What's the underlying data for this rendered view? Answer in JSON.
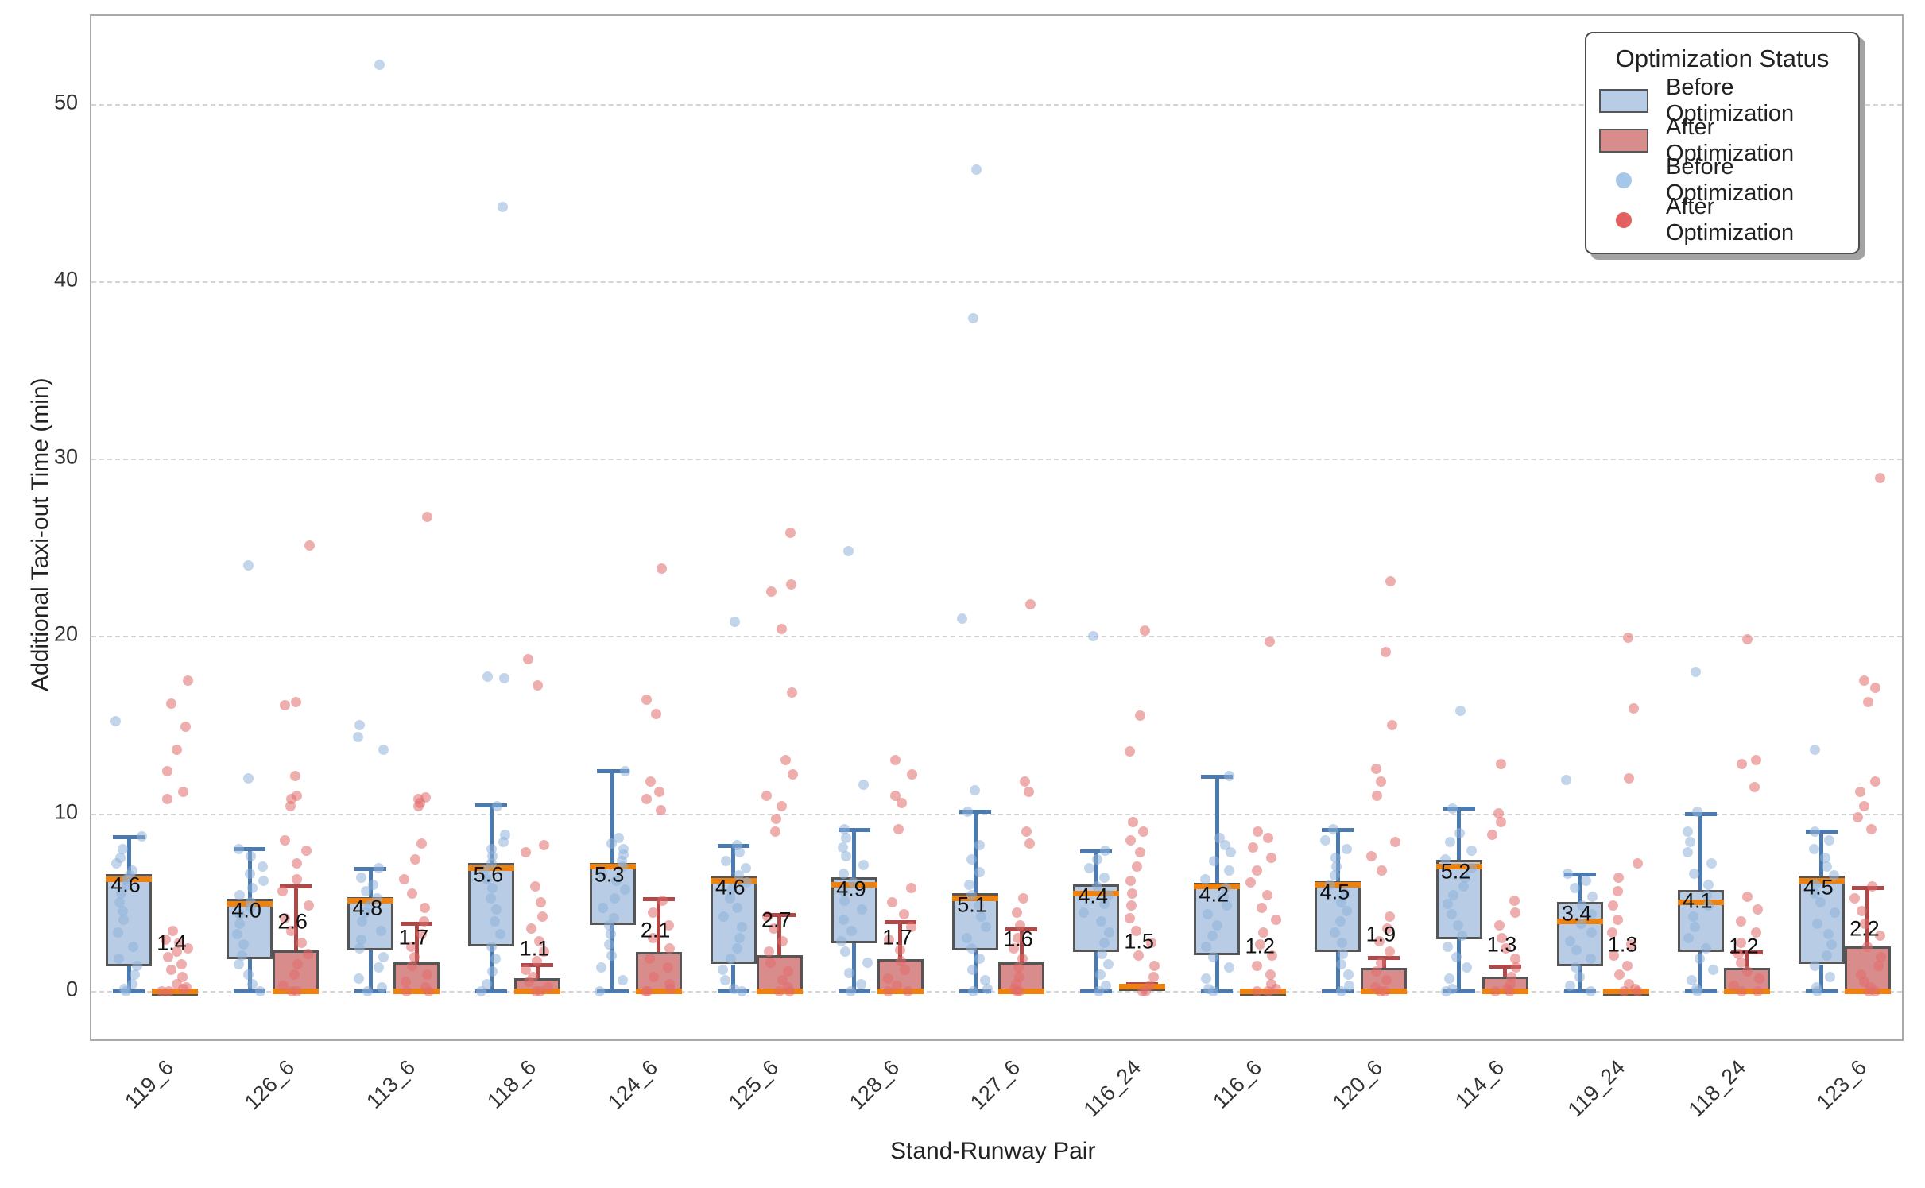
{
  "chart_data": {
    "type": "box",
    "xlabel": "Stand-Runway Pair",
    "ylabel": "Additional Taxi-out Time (min)",
    "yticks": [
      0,
      10,
      20,
      30,
      40,
      50
    ],
    "ylim": [
      -2.9,
      55
    ],
    "grid": "horizontal-dashed",
    "legend": {
      "title": "Optimization Status",
      "position": "upper right",
      "entries": [
        {
          "marker": "patch",
          "label": "Before Optimization"
        },
        {
          "marker": "patch",
          "label": "After Optimization"
        },
        {
          "marker": "dot",
          "label": "Before Optimization"
        },
        {
          "marker": "dot",
          "label": "After Optimization"
        }
      ]
    },
    "groups": [
      {
        "category": "119_6",
        "before": {
          "whislo": 0,
          "q1": 1.4,
          "med": 6.3,
          "q3": 6.6,
          "whishi": 8.7,
          "label": "4.6",
          "points": [
            15.2,
            8.7,
            8.0,
            7.5,
            7.2,
            6.8,
            6.5,
            6.3,
            6.0,
            5.5,
            5.0,
            4.5,
            4.0,
            3.3,
            2.5,
            1.8,
            1.4,
            0.9,
            0.4,
            0.1,
            0
          ]
        },
        "after": {
          "whislo": 0,
          "q1": 0,
          "med": 0,
          "q3": 0,
          "whishi": 0,
          "label": "1.4",
          "points": [
            17.5,
            16.2,
            14.9,
            13.6,
            12.4,
            11.2,
            10.8,
            3.4,
            2.9,
            2.7,
            2.4,
            2.2,
            1.9,
            1.5,
            1.2,
            0.8,
            0.4,
            0.2,
            0.1,
            0,
            0
          ]
        }
      },
      {
        "category": "126_6",
        "before": {
          "whislo": 0,
          "q1": 1.8,
          "med": 4.9,
          "q3": 5.2,
          "whishi": 8.0,
          "label": "4.0",
          "points": [
            24.0,
            12.0,
            8.0,
            7.6,
            7.0,
            6.6,
            6.2,
            5.8,
            5.4,
            5.0,
            4.7,
            4.3,
            3.8,
            3.2,
            2.6,
            2.0,
            1.5,
            0.9,
            0.4,
            0
          ]
        },
        "after": {
          "whislo": 0,
          "q1": 0,
          "med": 0,
          "q3": 2.3,
          "whishi": 5.9,
          "label": "2.6",
          "points": [
            25.1,
            16.3,
            16.1,
            12.1,
            11.0,
            10.8,
            10.4,
            8.5,
            7.9,
            7.2,
            6.3,
            5.6,
            4.8,
            4.1,
            3.4,
            2.7,
            2.1,
            1.5,
            0.9,
            0.3,
            0,
            0
          ]
        }
      },
      {
        "category": "113_6",
        "before": {
          "whislo": 0,
          "q1": 2.3,
          "med": 5.1,
          "q3": 5.3,
          "whishi": 6.9,
          "label": "4.8",
          "points": [
            52.2,
            15.0,
            14.3,
            13.6,
            6.9,
            6.4,
            6.0,
            5.6,
            5.2,
            4.8,
            4.4,
            3.9,
            3.4,
            2.9,
            2.4,
            1.9,
            1.3,
            0.7,
            0.2,
            0
          ]
        },
        "after": {
          "whislo": 0,
          "q1": 0,
          "med": 0,
          "q3": 1.6,
          "whishi": 3.8,
          "label": "1.7",
          "points": [
            26.7,
            10.9,
            10.8,
            10.6,
            10.4,
            8.3,
            7.4,
            6.3,
            5.5,
            4.7,
            3.9,
            3.2,
            2.5,
            1.9,
            1.4,
            0.9,
            0.5,
            0.2,
            0,
            0
          ]
        }
      },
      {
        "category": "118_6",
        "before": {
          "whislo": 0,
          "q1": 2.5,
          "med": 6.9,
          "q3": 7.2,
          "whishi": 10.5,
          "label": "5.6",
          "points": [
            44.2,
            17.7,
            17.6,
            10.4,
            8.8,
            8.4,
            8.0,
            7.6,
            7.2,
            6.8,
            6.3,
            5.8,
            5.2,
            4.6,
            3.9,
            3.2,
            2.5,
            1.8,
            1.1,
            0.4,
            0
          ]
        },
        "after": {
          "whislo": 0,
          "q1": 0,
          "med": 0,
          "q3": 0.7,
          "whishi": 1.5,
          "label": "1.1",
          "points": [
            18.7,
            17.2,
            8.2,
            7.8,
            5.9,
            5.0,
            4.2,
            3.5,
            2.8,
            2.2,
            1.7,
            1.2,
            0.8,
            0.5,
            0.2,
            0,
            0
          ]
        }
      },
      {
        "category": "124_6",
        "before": {
          "whislo": 0,
          "q1": 3.7,
          "med": 7.0,
          "q3": 7.2,
          "whishi": 12.4,
          "label": "5.3",
          "points": [
            12.4,
            8.6,
            8.3,
            8.0,
            7.7,
            7.3,
            7.0,
            6.6,
            6.2,
            5.7,
            5.2,
            4.7,
            4.1,
            3.7,
            3.2,
            2.6,
            2.0,
            1.3,
            0.6,
            0
          ]
        },
        "after": {
          "whislo": 0,
          "q1": 0,
          "med": 0,
          "q3": 2.2,
          "whishi": 5.2,
          "label": "2.1",
          "points": [
            23.8,
            16.4,
            15.6,
            11.8,
            11.2,
            10.8,
            10.2,
            5.1,
            4.4,
            3.7,
            3.0,
            2.4,
            1.8,
            1.3,
            0.8,
            0.4,
            0.1,
            0,
            0
          ]
        }
      },
      {
        "category": "125_6",
        "before": {
          "whislo": 0,
          "q1": 1.5,
          "med": 6.2,
          "q3": 6.5,
          "whishi": 8.2,
          "label": "4.6",
          "points": [
            20.8,
            8.2,
            7.8,
            7.3,
            6.9,
            6.5,
            6.1,
            5.7,
            5.2,
            4.7,
            4.2,
            3.6,
            3.0,
            2.4,
            1.8,
            1.2,
            0.6,
            0.1,
            0
          ]
        },
        "after": {
          "whislo": 0,
          "q1": 0,
          "med": 0,
          "q3": 2.0,
          "whishi": 4.3,
          "label": "2.7",
          "points": [
            25.8,
            22.9,
            22.5,
            20.4,
            16.8,
            13.0,
            12.2,
            11.0,
            10.4,
            9.7,
            9.0,
            4.2,
            3.5,
            2.8,
            2.2,
            1.6,
            1.1,
            0.6,
            0.2,
            0,
            0
          ]
        }
      },
      {
        "category": "128_6",
        "before": {
          "whislo": 0,
          "q1": 2.7,
          "med": 6.0,
          "q3": 6.4,
          "whishi": 9.1,
          "label": "4.9",
          "points": [
            24.8,
            11.6,
            9.1,
            8.6,
            8.1,
            7.6,
            7.1,
            6.6,
            6.1,
            5.6,
            5.1,
            4.6,
            4.0,
            3.4,
            2.8,
            2.2,
            1.6,
            1.0,
            0.4,
            0
          ]
        },
        "after": {
          "whislo": 0,
          "q1": 0,
          "med": 0,
          "q3": 1.8,
          "whishi": 3.9,
          "label": "1.7",
          "points": [
            13.0,
            12.2,
            11.0,
            10.6,
            9.1,
            5.8,
            5.0,
            4.3,
            3.6,
            2.9,
            2.3,
            1.7,
            1.2,
            0.7,
            0.3,
            0,
            0
          ]
        }
      },
      {
        "category": "127_6",
        "before": {
          "whislo": 0,
          "q1": 2.3,
          "med": 5.2,
          "q3": 5.5,
          "whishi": 10.1,
          "label": "5.1",
          "points": [
            46.3,
            37.9,
            21.0,
            11.3,
            10.1,
            8.2,
            7.4,
            6.7,
            6.0,
            5.4,
            4.8,
            4.2,
            3.6,
            3.0,
            2.4,
            1.8,
            1.2,
            0.6,
            0.1,
            0
          ]
        },
        "after": {
          "whislo": 0,
          "q1": 0,
          "med": 0,
          "q3": 1.6,
          "whishi": 3.5,
          "label": "1.6",
          "points": [
            21.8,
            11.8,
            11.2,
            9.0,
            8.3,
            5.2,
            4.4,
            3.7,
            3.0,
            2.4,
            1.8,
            1.3,
            0.8,
            0.4,
            0.1,
            0,
            0
          ]
        }
      },
      {
        "category": "116_24",
        "before": {
          "whislo": 0,
          "q1": 2.2,
          "med": 5.5,
          "q3": 6.0,
          "whishi": 7.9,
          "label": "4.4",
          "points": [
            20.0,
            7.9,
            7.4,
            6.9,
            6.4,
            5.9,
            5.4,
            4.9,
            4.4,
            3.9,
            3.3,
            2.7,
            2.1,
            1.5,
            0.9,
            0.3,
            0
          ]
        },
        "after": {
          "whislo": 0,
          "q1": 0,
          "med": 0.25,
          "q3": 0.3,
          "whishi": 0.4,
          "label": "1.5",
          "points": [
            20.3,
            15.5,
            13.5,
            9.5,
            9.0,
            8.5,
            7.8,
            7.0,
            6.2,
            5.5,
            4.8,
            4.1,
            3.4,
            2.7,
            2.0,
            1.4,
            0.8,
            0.3,
            0,
            0
          ]
        }
      },
      {
        "category": "116_6",
        "before": {
          "whislo": 0,
          "q1": 2.0,
          "med": 5.9,
          "q3": 6.1,
          "whishi": 12.1,
          "label": "4.2",
          "points": [
            12.1,
            8.6,
            8.2,
            7.8,
            7.3,
            6.8,
            6.3,
            5.8,
            5.3,
            4.8,
            4.3,
            3.7,
            3.1,
            2.5,
            1.9,
            1.3,
            0.7,
            0.1,
            0
          ]
        },
        "after": {
          "whislo": 0,
          "q1": 0,
          "med": 0,
          "q3": 0,
          "whishi": 0,
          "label": "1.2",
          "points": [
            19.7,
            9.0,
            8.6,
            8.1,
            7.5,
            6.8,
            6.1,
            5.4,
            4.7,
            4.0,
            3.3,
            2.6,
            2.0,
            1.4,
            0.9,
            0.4,
            0.1,
            0,
            0
          ]
        }
      },
      {
        "category": "120_6",
        "before": {
          "whislo": 0,
          "q1": 2.2,
          "med": 6.0,
          "q3": 6.2,
          "whishi": 9.1,
          "label": "4.5",
          "points": [
            9.1,
            8.5,
            8.0,
            7.5,
            7.0,
            6.5,
            6.0,
            5.5,
            5.0,
            4.5,
            3.9,
            3.3,
            2.7,
            2.1,
            1.5,
            0.9,
            0.3,
            0
          ]
        },
        "after": {
          "whislo": 0,
          "q1": 0,
          "med": 0,
          "q3": 1.3,
          "whishi": 1.9,
          "label": "1.9",
          "points": [
            23.1,
            19.1,
            15.0,
            12.5,
            11.8,
            11.0,
            8.4,
            7.6,
            6.8,
            4.2,
            3.5,
            2.8,
            2.2,
            1.6,
            1.1,
            0.6,
            0.2,
            0,
            0
          ]
        }
      },
      {
        "category": "114_6",
        "before": {
          "whislo": 0,
          "q1": 2.9,
          "med": 7.0,
          "q3": 7.4,
          "whishi": 10.3,
          "label": "5.2",
          "points": [
            15.8,
            10.3,
            8.9,
            8.4,
            7.9,
            7.4,
            6.9,
            6.4,
            5.9,
            5.4,
            4.9,
            4.3,
            3.7,
            3.1,
            2.5,
            1.9,
            1.3,
            0.7,
            0.1,
            0
          ]
        },
        "after": {
          "whislo": 0,
          "q1": 0,
          "med": 0,
          "q3": 0.8,
          "whishi": 1.4,
          "label": "1.3",
          "points": [
            12.8,
            10.0,
            9.5,
            8.8,
            5.1,
            4.4,
            3.7,
            3.0,
            2.4,
            1.8,
            1.3,
            0.8,
            0.4,
            0.1,
            0,
            0
          ]
        }
      },
      {
        "category": "119_24",
        "before": {
          "whislo": 0,
          "q1": 1.4,
          "med": 3.9,
          "q3": 5.0,
          "whishi": 6.6,
          "label": "3.4",
          "points": [
            11.9,
            6.6,
            6.2,
            5.8,
            5.3,
            4.8,
            4.3,
            3.8,
            3.3,
            2.8,
            2.3,
            1.8,
            1.3,
            0.8,
            0.3,
            0
          ]
        },
        "after": {
          "whislo": 0,
          "q1": 0,
          "med": 0,
          "q3": 0,
          "whishi": 0,
          "label": "1.3",
          "points": [
            19.9,
            15.9,
            12.0,
            7.2,
            6.4,
            5.6,
            4.8,
            4.0,
            3.3,
            2.6,
            2.0,
            1.4,
            0.9,
            0.4,
            0.1,
            0,
            0
          ]
        }
      },
      {
        "category": "118_24",
        "before": {
          "whislo": 0,
          "q1": 2.2,
          "med": 5.0,
          "q3": 5.7,
          "whishi": 10.0,
          "label": "4.1",
          "points": [
            18.0,
            10.1,
            9.0,
            8.4,
            7.8,
            7.2,
            6.6,
            6.0,
            5.4,
            4.8,
            4.2,
            3.6,
            3.0,
            2.4,
            1.8,
            1.2,
            0.6,
            0.1,
            0
          ]
        },
        "after": {
          "whislo": 0,
          "q1": 0,
          "med": 0,
          "q3": 1.3,
          "whishi": 2.2,
          "label": "1.2",
          "points": [
            19.8,
            13.0,
            12.8,
            11.5,
            5.3,
            4.6,
            3.9,
            3.3,
            2.7,
            2.1,
            1.6,
            1.1,
            0.7,
            0.3,
            0,
            0
          ]
        }
      },
      {
        "category": "123_6",
        "before": {
          "whislo": 0,
          "q1": 1.5,
          "med": 6.2,
          "q3": 6.5,
          "whishi": 9.0,
          "label": "4.5",
          "points": [
            13.6,
            9.0,
            8.5,
            8.0,
            7.5,
            7.0,
            6.5,
            6.0,
            5.5,
            5.0,
            4.4,
            3.8,
            3.2,
            2.6,
            2.0,
            1.4,
            0.8,
            0.2,
            0
          ]
        },
        "after": {
          "whislo": 0,
          "q1": 0,
          "med": 0,
          "q3": 2.5,
          "whishi": 5.8,
          "label": "2.2",
          "points": [
            28.9,
            17.5,
            17.1,
            16.3,
            11.8,
            11.2,
            10.4,
            9.8,
            9.1,
            5.9,
            5.2,
            4.5,
            3.8,
            3.1,
            2.5,
            1.9,
            1.4,
            0.9,
            0.5,
            0.2,
            0,
            0
          ]
        }
      }
    ]
  },
  "colors": {
    "box_before": "#b8cde5",
    "box_after": "#d98c8c",
    "box_edge": "#555555",
    "median": "#ee8210",
    "whisker_before": "#4a7ab0",
    "whisker_after": "#b04848",
    "dot_before": "#8fb3da",
    "dot_after": "#e26b6b",
    "legend_dot_before": "#a6c7e8",
    "legend_dot_after": "#e45f5f",
    "grid": "#d4d4d4",
    "text": "#222222"
  }
}
